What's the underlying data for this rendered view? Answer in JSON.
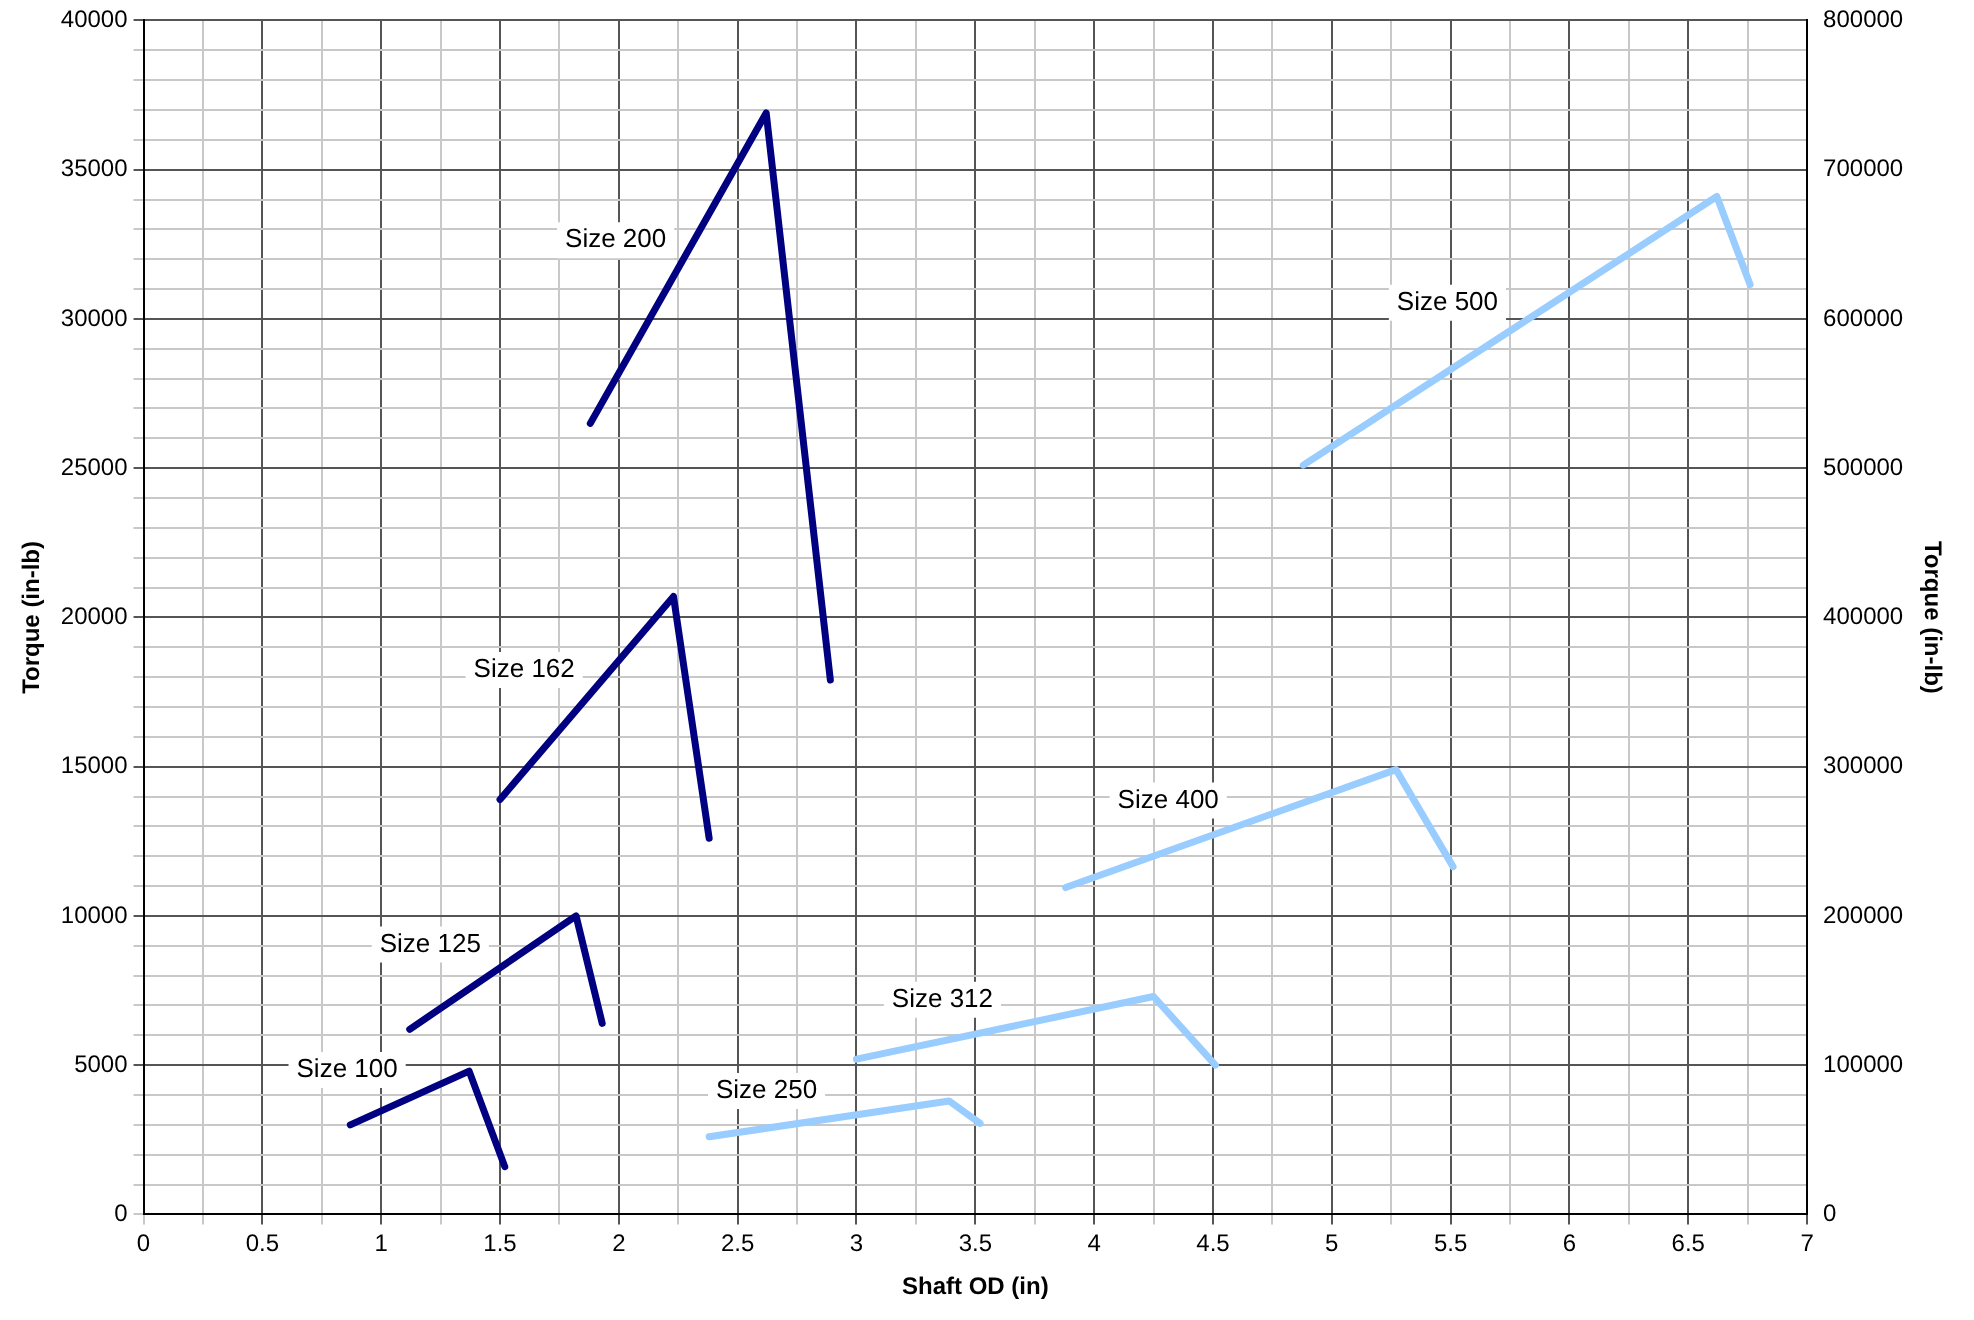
{
  "chart_data": {
    "type": "line",
    "xlabel": "Shaft OD (in)",
    "ylabel": "Torque (in-lb)",
    "y2label": "Torque (in-lb)",
    "xlim": [
      0,
      7
    ],
    "xticks": [
      0,
      {
        "value": 0.25,
        "label": null
      },
      0.5,
      {
        "value": 0.75,
        "label": null
      },
      1,
      {
        "value": 1.25,
        "label": null
      },
      1.5,
      {
        "value": 1.75,
        "label": null
      },
      2,
      {
        "value": 2.25,
        "label": null
      },
      2.5,
      {
        "value": 2.75,
        "label": null
      },
      3,
      {
        "value": 3.25,
        "label": null
      },
      3.5,
      {
        "value": 3.75,
        "label": null
      },
      4,
      {
        "value": 4.25,
        "label": null
      },
      4.5,
      {
        "value": 4.75,
        "label": null
      },
      5,
      {
        "value": 5.25,
        "label": null
      },
      5.5,
      {
        "value": 5.75,
        "label": null
      },
      6,
      {
        "value": 6.25,
        "label": null
      },
      6.5,
      {
        "value": 6.75,
        "label": null
      },
      7
    ],
    "ylim": [
      0,
      40000
    ],
    "yticks": [
      0,
      {
        "value": 1000,
        "label": null
      },
      {
        "value": 2000,
        "label": null
      },
      {
        "value": 3000,
        "label": null
      },
      {
        "value": 4000,
        "label": null
      },
      5000,
      {
        "value": 6000,
        "label": null
      },
      {
        "value": 7000,
        "label": null
      },
      {
        "value": 8000,
        "label": null
      },
      {
        "value": 9000,
        "label": null
      },
      10000,
      {
        "value": 11000,
        "label": null
      },
      {
        "value": 12000,
        "label": null
      },
      {
        "value": 13000,
        "label": null
      },
      {
        "value": 14000,
        "label": null
      },
      15000,
      {
        "value": 16000,
        "label": null
      },
      {
        "value": 17000,
        "label": null
      },
      {
        "value": 18000,
        "label": null
      },
      {
        "value": 19000,
        "label": null
      },
      20000,
      {
        "value": 21000,
        "label": null
      },
      {
        "value": 22000,
        "label": null
      },
      {
        "value": 23000,
        "label": null
      },
      {
        "value": 24000,
        "label": null
      },
      25000,
      {
        "value": 26000,
        "label": null
      },
      {
        "value": 27000,
        "label": null
      },
      {
        "value": 28000,
        "label": null
      },
      {
        "value": 29000,
        "label": null
      },
      30000,
      {
        "value": 31000,
        "label": null
      },
      {
        "value": 32000,
        "label": null
      },
      {
        "value": 33000,
        "label": null
      },
      {
        "value": 34000,
        "label": null
      },
      35000,
      {
        "value": 36000,
        "label": null
      },
      {
        "value": 37000,
        "label": null
      },
      {
        "value": 38000,
        "label": null
      },
      {
        "value": 39000,
        "label": null
      },
      40000
    ],
    "y2lim": [
      0,
      800000
    ],
    "y2ticks": [
      0,
      100000,
      200000,
      300000,
      400000,
      500000,
      600000,
      700000,
      800000
    ],
    "grid": true,
    "legend": false,
    "marker": "none",
    "line_style": "solid",
    "series": [
      {
        "name": "Size 100",
        "color": "#000080",
        "x": [
          0.87,
          1.37,
          1.52
        ],
        "values": [
          3000,
          4800,
          1600
        ]
      },
      {
        "name": "Size 125",
        "color": "#000080",
        "x": [
          1.12,
          1.82,
          1.93
        ],
        "values": [
          6200,
          10000,
          6400
        ]
      },
      {
        "name": "Size 162",
        "color": "#000080",
        "x": [
          1.5,
          2.23,
          2.38
        ],
        "values": [
          13900,
          20700,
          12600
        ]
      },
      {
        "name": "Size 200",
        "color": "#000080",
        "x": [
          1.88,
          2.62,
          2.89
        ],
        "values": [
          26500,
          36900,
          17900
        ]
      },
      {
        "name": "Size 250",
        "color": "#99ccff",
        "axis": "y2",
        "x": [
          2.38,
          3.39,
          3.52
        ],
        "values": [
          52000,
          76000,
          61000
        ]
      },
      {
        "name": "Size 312",
        "color": "#99ccff",
        "axis": "y2",
        "x": [
          3.0,
          4.25,
          4.51
        ],
        "values": [
          104000,
          146000,
          100000
        ]
      },
      {
        "name": "Size 400",
        "color": "#99ccff",
        "axis": "y2",
        "x": [
          3.88,
          5.27,
          5.51
        ],
        "values": [
          219000,
          298000,
          233000
        ]
      },
      {
        "name": "Size 500",
        "color": "#99ccff",
        "axis": "y2",
        "x": [
          4.88,
          6.62,
          6.76
        ],
        "values": [
          502000,
          682000,
          623000
        ]
      }
    ]
  }
}
